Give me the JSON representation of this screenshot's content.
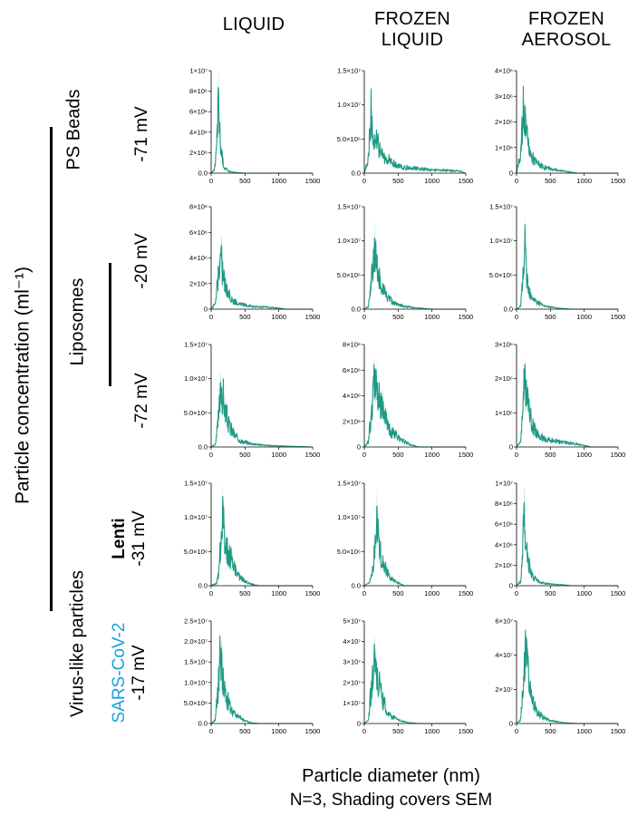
{
  "columns": [
    "LIQUID",
    "FROZEN\nLIQUID",
    "FROZEN\nAEROSOL"
  ],
  "y_axis_title": "Particle concentration (ml⁻¹)",
  "x_axis_title": "Particle diameter (nm)",
  "note": "N=3, Shading covers SEM",
  "groups": [
    {
      "label": "PS Beads"
    },
    {
      "label": "Liposomes"
    },
    {
      "label": "Virus-like particles"
    }
  ],
  "rows": [
    {
      "name": "",
      "zeta": "-71 mV"
    },
    {
      "name": "",
      "zeta": "-20 mV"
    },
    {
      "name": "",
      "zeta": "-72 mV"
    },
    {
      "name": "Lenti",
      "zeta": "-31 mV"
    },
    {
      "name": "SARS-CoV-2",
      "zeta": "-17 mV",
      "name_color": "#1aa0dc"
    }
  ],
  "colors": {
    "series": "#1f9a84",
    "axis": "#000000",
    "sars_label": "#1aa0dc"
  },
  "chart_data": [
    {
      "type": "area",
      "row": "PS Beads -71 mV",
      "column": "LIQUID",
      "xlim": [
        0,
        1500
      ],
      "xticks": [
        0,
        500,
        1000,
        1500
      ],
      "ylim": [
        0,
        10000000
      ],
      "yticks": [
        "0.0",
        "2×10⁶",
        "4×10⁶",
        "6×10⁶",
        "8×10⁶",
        "1×10⁷"
      ],
      "points": [
        [
          0,
          0
        ],
        [
          50,
          400000
        ],
        [
          80,
          3000000
        ],
        [
          100,
          7500000
        ],
        [
          110,
          8500000
        ],
        [
          120,
          6000000
        ],
        [
          140,
          3500000
        ],
        [
          170,
          1500000
        ],
        [
          200,
          600000
        ],
        [
          250,
          300000
        ],
        [
          300,
          150000
        ],
        [
          400,
          50000
        ],
        [
          500,
          0
        ],
        [
          1500,
          0
        ]
      ]
    },
    {
      "type": "area",
      "row": "PS Beads -71 mV",
      "column": "FROZEN\nLIQUID",
      "xlim": [
        0,
        1500
      ],
      "xticks": [
        0,
        500,
        1000,
        1500
      ],
      "ylim": [
        0,
        15000000
      ],
      "yticks": [
        "0.0",
        "5.0×10⁶",
        "1.0×10⁷",
        "1.5×10⁷"
      ],
      "points": [
        [
          0,
          0
        ],
        [
          50,
          2000000
        ],
        [
          100,
          11500000
        ],
        [
          130,
          6000000
        ],
        [
          170,
          7000000
        ],
        [
          220,
          4000000
        ],
        [
          280,
          3000000
        ],
        [
          350,
          2500000
        ],
        [
          450,
          1500000
        ],
        [
          600,
          1000000
        ],
        [
          800,
          800000
        ],
        [
          1000,
          600000
        ],
        [
          1200,
          500000
        ],
        [
          1400,
          400000
        ],
        [
          1500,
          0
        ]
      ]
    },
    {
      "type": "area",
      "row": "PS Beads -71 mV",
      "column": "FROZEN\nAEROSOL",
      "xlim": [
        0,
        1500
      ],
      "xticks": [
        0,
        500,
        1000,
        1500
      ],
      "ylim": [
        0,
        4000000
      ],
      "yticks": [
        "0",
        "1×10⁶",
        "2×10⁶",
        "3×10⁶",
        "4×10⁶"
      ],
      "points": [
        [
          0,
          0
        ],
        [
          60,
          1000000
        ],
        [
          100,
          2900000
        ],
        [
          130,
          2300000
        ],
        [
          170,
          1400000
        ],
        [
          220,
          800000
        ],
        [
          300,
          500000
        ],
        [
          400,
          300000
        ],
        [
          500,
          200000
        ],
        [
          700,
          100000
        ],
        [
          900,
          0
        ],
        [
          1500,
          0
        ]
      ]
    },
    {
      "type": "area",
      "row": "Liposomes -20 mV",
      "column": "LIQUID",
      "xlim": [
        0,
        1500
      ],
      "xticks": [
        0,
        500,
        1000,
        1500
      ],
      "ylim": [
        0,
        8000000
      ],
      "yticks": [
        "0",
        "2×10⁶",
        "4×10⁶",
        "6×10⁶",
        "8×10⁶"
      ],
      "points": [
        [
          0,
          0
        ],
        [
          60,
          500000
        ],
        [
          100,
          3000000
        ],
        [
          140,
          5500000
        ],
        [
          180,
          3500000
        ],
        [
          220,
          2000000
        ],
        [
          300,
          1000000
        ],
        [
          400,
          500000
        ],
        [
          600,
          300000
        ],
        [
          800,
          200000
        ],
        [
          1000,
          100000
        ],
        [
          1100,
          0
        ],
        [
          1500,
          0
        ]
      ]
    },
    {
      "type": "area",
      "row": "Liposomes -20 mV",
      "column": "FROZEN\nLIQUID",
      "xlim": [
        0,
        1500
      ],
      "xticks": [
        0,
        500,
        1000,
        1500
      ],
      "ylim": [
        0,
        15000000
      ],
      "yticks": [
        "0.0",
        "5.0×10⁶",
        "1.0×10⁷",
        "1.5×10⁷"
      ],
      "points": [
        [
          0,
          0
        ],
        [
          60,
          500000
        ],
        [
          100,
          5000000
        ],
        [
          150,
          10500000
        ],
        [
          200,
          7000000
        ],
        [
          260,
          4000000
        ],
        [
          350,
          2000000
        ],
        [
          450,
          1000000
        ],
        [
          600,
          500000
        ],
        [
          800,
          200000
        ],
        [
          1000,
          0
        ],
        [
          1500,
          0
        ]
      ]
    },
    {
      "type": "area",
      "row": "Liposomes -20 mV",
      "column": "FROZEN\nAEROSOL",
      "xlim": [
        0,
        1500
      ],
      "xticks": [
        0,
        500,
        1000,
        1500
      ],
      "ylim": [
        0,
        15000000
      ],
      "yticks": [
        "0.0",
        "5.0×10⁶",
        "1.0×10⁷",
        "1.5×10⁷"
      ],
      "points": [
        [
          0,
          0
        ],
        [
          60,
          500000
        ],
        [
          100,
          7000000
        ],
        [
          120,
          11500000
        ],
        [
          150,
          6000000
        ],
        [
          200,
          3000000
        ],
        [
          280,
          1500000
        ],
        [
          400,
          600000
        ],
        [
          600,
          200000
        ],
        [
          800,
          0
        ],
        [
          1500,
          0
        ]
      ]
    },
    {
      "type": "area",
      "row": "Liposomes -72 mV",
      "column": "LIQUID",
      "xlim": [
        0,
        1500
      ],
      "xticks": [
        0,
        500,
        1000,
        1500
      ],
      "ylim": [
        0,
        15000000
      ],
      "yticks": [
        "0.0",
        "5.0×10⁶",
        "1.0×10⁷",
        "1.5×10⁷"
      ],
      "points": [
        [
          0,
          0
        ],
        [
          60,
          500000
        ],
        [
          100,
          4000000
        ],
        [
          150,
          11000000
        ],
        [
          200,
          7000000
        ],
        [
          260,
          4000000
        ],
        [
          350,
          2000000
        ],
        [
          450,
          1000000
        ],
        [
          600,
          600000
        ],
        [
          800,
          300000
        ],
        [
          1000,
          200000
        ],
        [
          1200,
          100000
        ],
        [
          1500,
          0
        ]
      ]
    },
    {
      "type": "area",
      "row": "Liposomes -72 mV",
      "column": "FROZEN\nLIQUID",
      "xlim": [
        0,
        1500
      ],
      "xticks": [
        0,
        500,
        1000,
        1500
      ],
      "ylim": [
        0,
        8000000
      ],
      "yticks": [
        "0",
        "2×10⁶",
        "4×10⁶",
        "6×10⁶",
        "8×10⁶"
      ],
      "points": [
        [
          0,
          0
        ],
        [
          60,
          500000
        ],
        [
          100,
          3000000
        ],
        [
          150,
          6000000
        ],
        [
          200,
          5000000
        ],
        [
          260,
          4000000
        ],
        [
          330,
          2500000
        ],
        [
          400,
          1500000
        ],
        [
          500,
          1000000
        ],
        [
          600,
          500000
        ],
        [
          700,
          200000
        ],
        [
          800,
          0
        ],
        [
          1500,
          0
        ]
      ]
    },
    {
      "type": "area",
      "row": "Liposomes -72 mV",
      "column": "FROZEN\nAEROSOL",
      "xlim": [
        0,
        1500
      ],
      "xticks": [
        0,
        500,
        1000,
        1500
      ],
      "ylim": [
        0,
        3000000
      ],
      "yticks": [
        "0",
        "1×10⁶",
        "2×10⁶",
        "3×10⁶"
      ],
      "points": [
        [
          0,
          0
        ],
        [
          60,
          200000
        ],
        [
          100,
          1800000
        ],
        [
          130,
          2700000
        ],
        [
          160,
          1800000
        ],
        [
          220,
          900000
        ],
        [
          300,
          500000
        ],
        [
          400,
          300000
        ],
        [
          600,
          200000
        ],
        [
          900,
          100000
        ],
        [
          1100,
          0
        ],
        [
          1500,
          0
        ]
      ]
    },
    {
      "type": "area",
      "row": "Lenti -31 mV",
      "column": "LIQUID",
      "xlim": [
        0,
        1500
      ],
      "xticks": [
        0,
        500,
        1000,
        1500
      ],
      "ylim": [
        0,
        15000000
      ],
      "yticks": [
        "0.0",
        "5.0×10⁶",
        "1.0×10⁷",
        "1.5×10⁷"
      ],
      "points": [
        [
          0,
          0
        ],
        [
          80,
          500000
        ],
        [
          120,
          3000000
        ],
        [
          160,
          13500000
        ],
        [
          200,
          9000000
        ],
        [
          250,
          6000000
        ],
        [
          320,
          4000000
        ],
        [
          400,
          2000000
        ],
        [
          500,
          800000
        ],
        [
          600,
          300000
        ],
        [
          700,
          0
        ],
        [
          1500,
          0
        ]
      ]
    },
    {
      "type": "area",
      "row": "Lenti -31 mV",
      "column": "FROZEN\nLIQUID",
      "xlim": [
        0,
        1500
      ],
      "xticks": [
        0,
        500,
        1000,
        1500
      ],
      "ylim": [
        0,
        15000000
      ],
      "yticks": [
        "0.0",
        "5.0×10⁶",
        "1.0×10⁷",
        "1.5×10⁷"
      ],
      "points": [
        [
          0,
          0
        ],
        [
          80,
          500000
        ],
        [
          130,
          3000000
        ],
        [
          180,
          12000000
        ],
        [
          220,
          7000000
        ],
        [
          280,
          4000000
        ],
        [
          350,
          2000000
        ],
        [
          450,
          800000
        ],
        [
          550,
          200000
        ],
        [
          600,
          0
        ],
        [
          1500,
          0
        ]
      ]
    },
    {
      "type": "area",
      "row": "Lenti -31 mV",
      "column": "FROZEN\nAEROSOL",
      "xlim": [
        0,
        1500
      ],
      "xticks": [
        0,
        500,
        1000,
        1500
      ],
      "ylim": [
        0,
        10000000
      ],
      "yticks": [
        "0",
        "2×10⁶",
        "4×10⁶",
        "6×10⁶",
        "8×10⁶",
        "1×10⁷"
      ],
      "points": [
        [
          0,
          0
        ],
        [
          60,
          500000
        ],
        [
          90,
          4000000
        ],
        [
          110,
          9500000
        ],
        [
          140,
          5000000
        ],
        [
          180,
          2500000
        ],
        [
          250,
          1000000
        ],
        [
          350,
          400000
        ],
        [
          500,
          200000
        ],
        [
          700,
          100000
        ],
        [
          800,
          0
        ],
        [
          1500,
          0
        ]
      ]
    },
    {
      "type": "area",
      "row": "SARS-CoV-2 -17 mV",
      "column": "LIQUID",
      "xlim": [
        0,
        1500
      ],
      "xticks": [
        0,
        500,
        1000,
        1500
      ],
      "ylim": [
        0,
        25000000
      ],
      "yticks": [
        "0.0",
        "5.0×10⁶",
        "1.0×10⁷",
        "1.5×10⁷",
        "2.0×10⁷",
        "2.5×10⁷"
      ],
      "points": [
        [
          0,
          0
        ],
        [
          60,
          1000000
        ],
        [
          100,
          10000000
        ],
        [
          130,
          22000000
        ],
        [
          170,
          15000000
        ],
        [
          220,
          8000000
        ],
        [
          300,
          4000000
        ],
        [
          400,
          2000000
        ],
        [
          500,
          800000
        ],
        [
          600,
          200000
        ],
        [
          700,
          0
        ],
        [
          1500,
          0
        ]
      ]
    },
    {
      "type": "area",
      "row": "SARS-CoV-2 -17 mV",
      "column": "FROZEN\nLIQUID",
      "xlim": [
        0,
        1500
      ],
      "xticks": [
        0,
        500,
        1000,
        1500
      ],
      "ylim": [
        0,
        50000000
      ],
      "yticks": [
        "0",
        "1×10⁷",
        "2×10⁷",
        "3×10⁷",
        "4×10⁷",
        "5×10⁷"
      ],
      "points": [
        [
          0,
          0
        ],
        [
          60,
          2000000
        ],
        [
          100,
          20000000
        ],
        [
          150,
          37000000
        ],
        [
          200,
          28000000
        ],
        [
          260,
          15000000
        ],
        [
          330,
          8000000
        ],
        [
          420,
          4000000
        ],
        [
          520,
          2000000
        ],
        [
          650,
          500000
        ],
        [
          800,
          0
        ],
        [
          1500,
          0
        ]
      ]
    },
    {
      "type": "area",
      "row": "SARS-CoV-2 -17 mV",
      "column": "FROZEN\nAEROSOL",
      "xlim": [
        0,
        1500
      ],
      "xticks": [
        0,
        500,
        1000,
        1500
      ],
      "ylim": [
        0,
        60000000
      ],
      "yticks": [
        "0",
        "2×10⁷",
        "4×10⁷",
        "6×10⁷"
      ],
      "points": [
        [
          0,
          0
        ],
        [
          60,
          3000000
        ],
        [
          100,
          30000000
        ],
        [
          130,
          55000000
        ],
        [
          160,
          40000000
        ],
        [
          210,
          20000000
        ],
        [
          280,
          10000000
        ],
        [
          380,
          5000000
        ],
        [
          500,
          2000000
        ],
        [
          700,
          500000
        ],
        [
          900,
          0
        ],
        [
          1500,
          0
        ]
      ]
    }
  ]
}
